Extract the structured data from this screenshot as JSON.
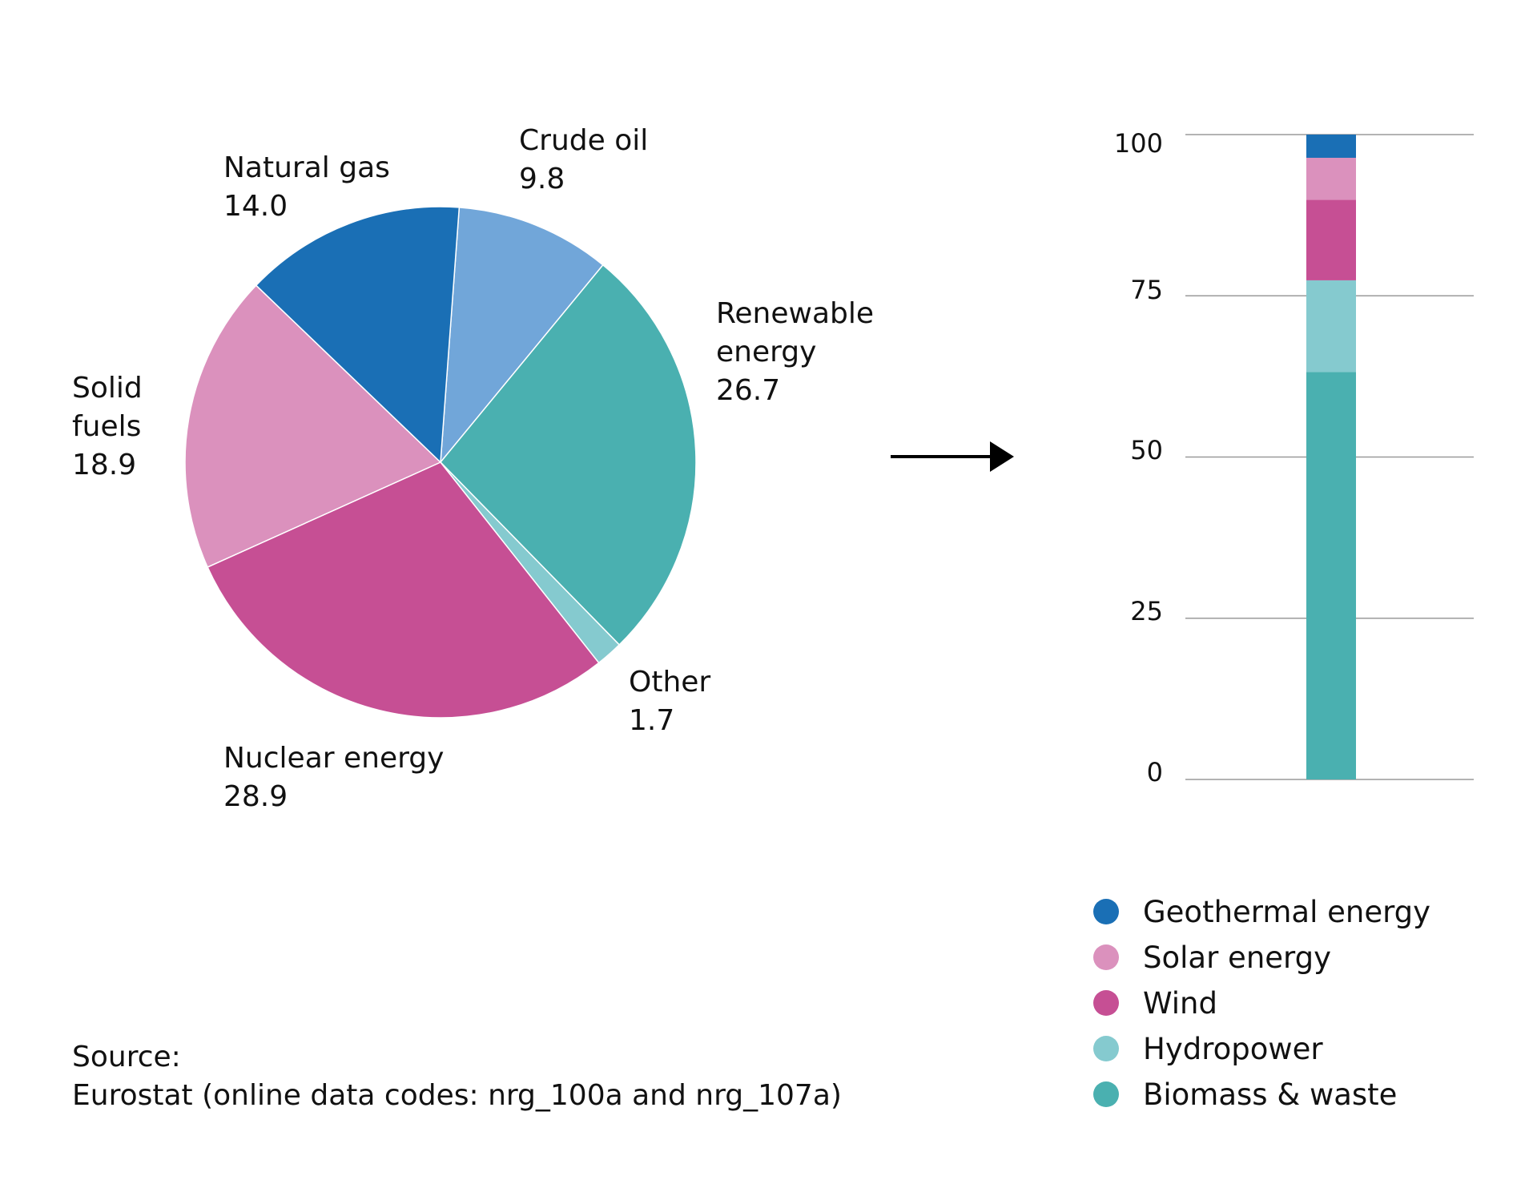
{
  "chart_data": [
    {
      "type": "pie",
      "title": "",
      "slices": [
        {
          "label": "Crude oil",
          "value": 9.8,
          "value_text": "9.8",
          "color": "#71a6d9"
        },
        {
          "label": "Renewable energy",
          "label_lines": [
            "Renewable",
            "energy"
          ],
          "value": 26.7,
          "value_text": "26.7",
          "color": "#4ab0b0"
        },
        {
          "label": "Other",
          "value": 1.7,
          "value_text": "1.7",
          "color": "#85cacf"
        },
        {
          "label": "Nuclear energy",
          "value": 28.9,
          "value_text": "28.9",
          "color": "#c64f94"
        },
        {
          "label": "Solid fuels",
          "label_lines": [
            "Solid",
            "fuels"
          ],
          "value": 18.9,
          "value_text": "18.9",
          "color": "#db91bd"
        },
        {
          "label": "Natural gas",
          "value": 14.0,
          "value_text": "14.0",
          "color": "#1a6fb5"
        }
      ]
    },
    {
      "type": "bar",
      "stacked": true,
      "ylim": [
        0,
        100
      ],
      "yticks": [
        "0",
        "25",
        "50",
        "75",
        "100"
      ],
      "series": [
        {
          "name": "Biomass & waste",
          "value": 63.2,
          "color": "#4ab0b0"
        },
        {
          "name": "Hydropower",
          "value": 14.2,
          "color": "#85cacf"
        },
        {
          "name": "Wind",
          "value": 12.5,
          "color": "#c64f94"
        },
        {
          "name": "Solar energy",
          "value": 6.5,
          "color": "#db91bd"
        },
        {
          "name": "Geothermal energy",
          "value": 3.6,
          "color": "#1a6fb5"
        }
      ],
      "legend": [
        "Geothermal energy",
        "Solar energy",
        "Wind",
        "Hydropower",
        "Biomass & waste"
      ],
      "legend_placement": "bottom-right"
    }
  ],
  "source": {
    "title": "Source:",
    "text": "Eurostat (online data codes: nrg_100a and nrg_107a)"
  }
}
